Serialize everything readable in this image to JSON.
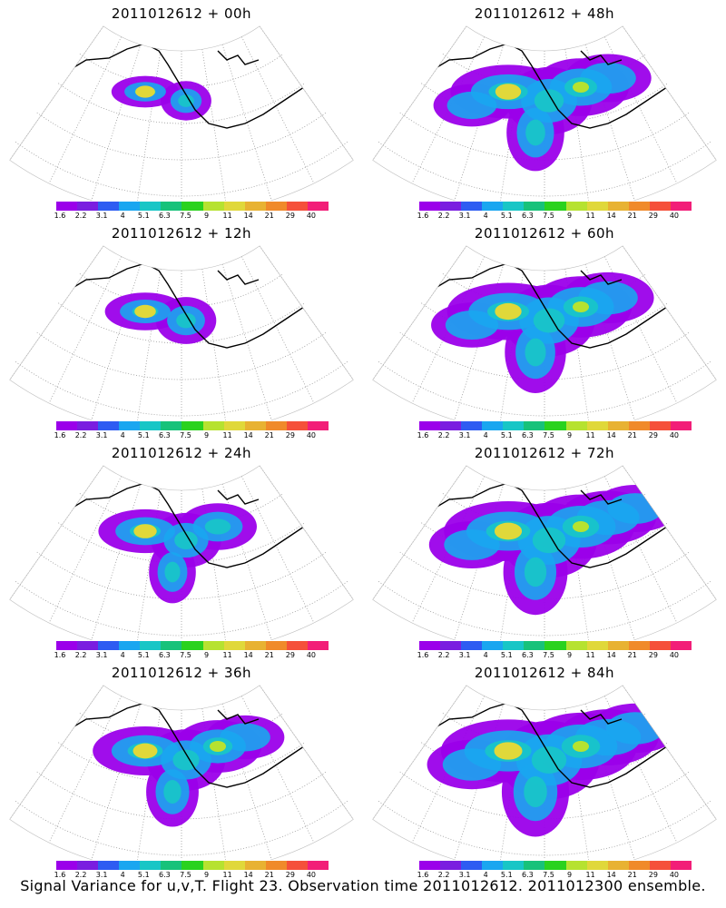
{
  "colorbar": {
    "labels": [
      "1.6",
      "2.2",
      "3.1",
      "4",
      "5.1",
      "6.3",
      "7.5",
      "9",
      "11",
      "14",
      "21",
      "29",
      "40"
    ],
    "colors": [
      "#9b00ea",
      "#7a1ee0",
      "#2e5cf2",
      "#1aa6f0",
      "#18c6c6",
      "#17c27a",
      "#2ad21e",
      "#b6e230",
      "#e0d83a",
      "#e8b232",
      "#f08a2a",
      "#f5503a",
      "#f21e78"
    ]
  },
  "panels": [
    {
      "title": "2011012612 + 00h",
      "level": 0.15
    },
    {
      "title": "2011012612 + 48h",
      "level": 0.7
    },
    {
      "title": "2011012612 + 12h",
      "level": 0.3
    },
    {
      "title": "2011012612 + 60h",
      "level": 0.78
    },
    {
      "title": "2011012612 + 24h",
      "level": 0.45
    },
    {
      "title": "2011012612 + 72h",
      "level": 0.85
    },
    {
      "title": "2011012612 + 36h",
      "level": 0.58
    },
    {
      "title": "2011012612 + 84h",
      "level": 0.92
    }
  ],
  "caption": "Signal Variance for u,v,T. Flight 23. Observation time 2011012612. 2011012300 ensemble."
}
